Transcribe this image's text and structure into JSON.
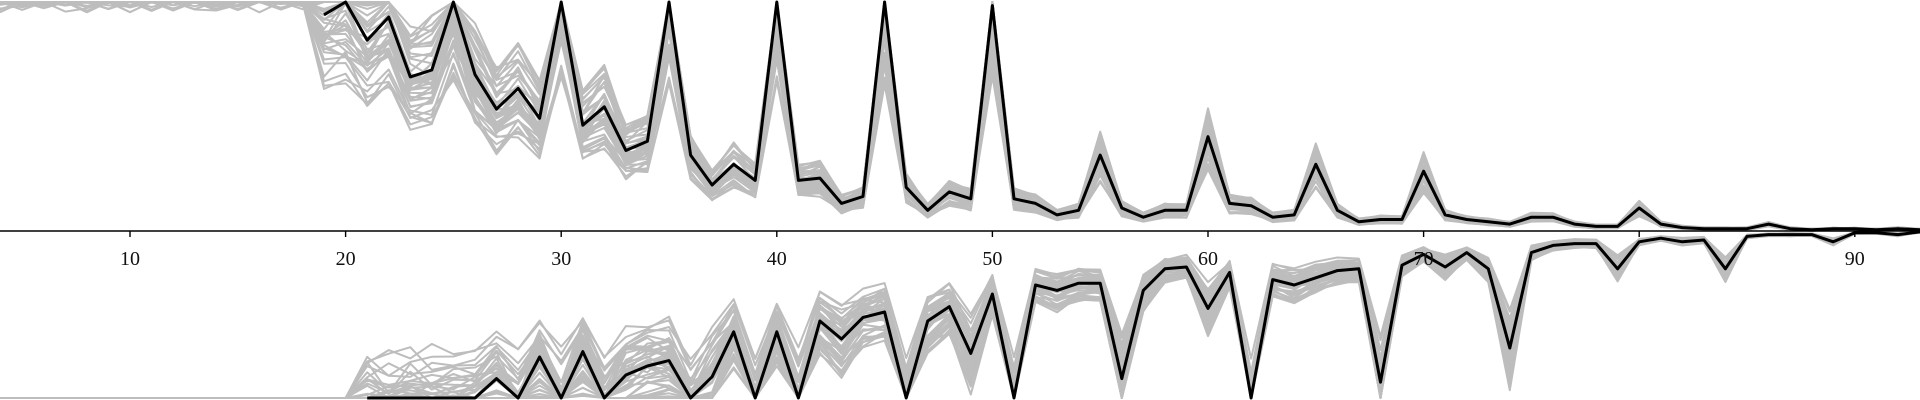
{
  "chart_data": {
    "type": "line",
    "xlim": [
      1,
      95
    ],
    "x_ticks": [
      10,
      20,
      30,
      40,
      50,
      60,
      70,
      80,
      90
    ],
    "x_tick_labels": [
      "10",
      "20",
      "30",
      "40",
      "50",
      "60",
      "70",
      "",
      "90"
    ],
    "grid": false,
    "legend": "none",
    "colors": {
      "background": "#ffffff",
      "axis": "#000000",
      "highlight": "#000000",
      "ensemble": "#bdbdbd"
    },
    "panels": [
      {
        "position": "upper",
        "direction": "up",
        "highlight": {
          "x": [
            19,
            20,
            21,
            22,
            23,
            24,
            25,
            26,
            27,
            28,
            29,
            30,
            31,
            32,
            33,
            34,
            35,
            36,
            37,
            38,
            39,
            40,
            41,
            42,
            43,
            44,
            45,
            46,
            47,
            48,
            49,
            50,
            51,
            52,
            53,
            54,
            55,
            56,
            57,
            58,
            59,
            60,
            61,
            62,
            63,
            64,
            65,
            66,
            67,
            68,
            69,
            70,
            71,
            72,
            73,
            74,
            75,
            76,
            77,
            78,
            79,
            80,
            81,
            82,
            83,
            84,
            85,
            86,
            87,
            88,
            89,
            90,
            91,
            92,
            93,
            94,
            95
          ],
          "y": [
            0.94,
            1.0,
            0.83,
            0.93,
            0.67,
            0.7,
            1.0,
            0.68,
            0.53,
            0.62,
            0.49,
            1.0,
            0.46,
            0.54,
            0.35,
            0.39,
            1.0,
            0.33,
            0.2,
            0.29,
            0.22,
            1.0,
            0.22,
            0.23,
            0.12,
            0.15,
            1.0,
            0.19,
            0.09,
            0.17,
            0.14,
            0.98,
            0.14,
            0.12,
            0.07,
            0.09,
            0.33,
            0.1,
            0.06,
            0.09,
            0.09,
            0.41,
            0.12,
            0.11,
            0.06,
            0.07,
            0.29,
            0.09,
            0.04,
            0.05,
            0.05,
            0.26,
            0.07,
            0.05,
            0.04,
            0.03,
            0.06,
            0.06,
            0.03,
            0.02,
            0.02,
            0.1,
            0.03,
            0.015,
            0.01,
            0.01,
            0.01,
            0.03,
            0.01,
            0.005,
            0.01,
            0.01,
            0.005,
            0.01,
            0.005,
            0.003,
            0.003
          ]
        }
      },
      {
        "position": "lower",
        "direction": "down",
        "highlight": {
          "x": [
            21,
            22,
            23,
            24,
            25,
            26,
            27,
            28,
            29,
            30,
            31,
            32,
            33,
            34,
            35,
            36,
            37,
            38,
            39,
            40,
            41,
            42,
            43,
            44,
            45,
            46,
            47,
            48,
            49,
            50,
            51,
            52,
            53,
            54,
            55,
            56,
            57,
            58,
            59,
            60,
            61,
            62,
            63,
            64,
            65,
            66,
            67,
            68,
            69,
            70,
            71,
            72,
            73,
            74,
            75,
            76,
            77,
            78,
            79,
            80,
            81,
            82,
            83,
            84,
            85,
            86,
            87,
            88,
            89,
            90,
            91,
            92,
            93,
            94,
            95
          ],
          "y": [
            0.97,
            1.0,
            0.98,
            0.98,
            1.0,
            0.95,
            0.82,
            1.0,
            0.7,
            1.0,
            0.67,
            1.0,
            0.8,
            0.75,
            0.72,
            1.0,
            0.81,
            0.56,
            1.0,
            0.56,
            1.0,
            0.5,
            0.6,
            0.48,
            0.45,
            1.0,
            0.5,
            0.42,
            0.68,
            0.35,
            1.0,
            0.3,
            0.33,
            0.29,
            0.29,
            0.82,
            0.33,
            0.21,
            0.2,
            0.43,
            0.23,
            1.0,
            0.27,
            0.3,
            0.26,
            0.22,
            0.21,
            0.84,
            0.19,
            0.13,
            0.2,
            0.12,
            0.21,
            0.65,
            0.12,
            0.08,
            0.07,
            0.07,
            0.21,
            0.06,
            0.04,
            0.06,
            0.05,
            0.21,
            0.03,
            0.02,
            0.02,
            0.02,
            0.06,
            0.01,
            0.01,
            0.02,
            0.005,
            0.003,
            0.003
          ]
        }
      }
    ]
  }
}
